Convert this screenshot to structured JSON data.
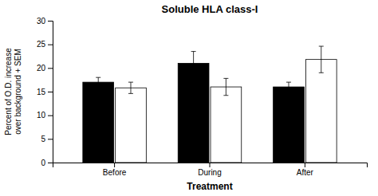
{
  "chart_data": {
    "type": "bar",
    "title": "Soluble HLA class-I",
    "xlabel": "Treatment",
    "ylabel": "Percent of O.D. increase\nover background + SEM",
    "categories": [
      "Before",
      "During",
      "After"
    ],
    "series": [
      {
        "color": "#000000",
        "values": [
          17.0,
          21.0,
          16.0
        ],
        "errors": [
          1.0,
          2.5,
          1.0
        ]
      },
      {
        "color": "#ffffff",
        "values": [
          15.8,
          16.0,
          21.8
        ],
        "errors": [
          1.2,
          1.8,
          2.8
        ]
      }
    ],
    "ylim": [
      0,
      30
    ],
    "yticks": [
      0,
      5,
      10,
      15,
      20,
      25,
      30
    ],
    "grid": false
  }
}
